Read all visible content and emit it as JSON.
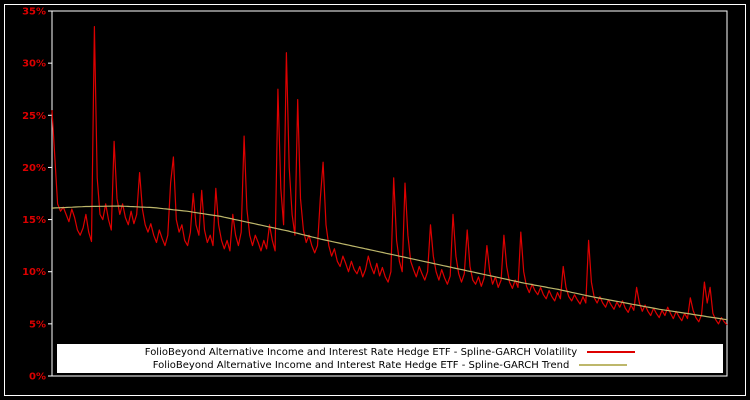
{
  "window": {
    "background": "#000000",
    "frame_color": "#ffffff"
  },
  "chart": {
    "plot_box_color": "#ffffff",
    "y_axis": {
      "label_color": "#dd0000",
      "tick_color": "#ffffff"
    },
    "legend": {
      "background": "#ffffff",
      "entries": [
        {
          "label": "FolioBeyond Alternative Income and Interest Rate Hedge ETF - Spline-GARCH Volatility",
          "color": "#dd0000"
        },
        {
          "label": "FolioBeyond Alternative Income and Interest Rate Hedge ETF - Spline-GARCH Trend",
          "color": "#bdb76b"
        }
      ]
    }
  },
  "chart_data": {
    "type": "line",
    "title": "",
    "xlabel": "",
    "ylabel": "",
    "ylim": [
      0,
      35
    ],
    "grid": false,
    "legend_position": "bottom",
    "y_ticks": [
      {
        "value": 0,
        "label": "0%"
      },
      {
        "value": 5,
        "label": "5%"
      },
      {
        "value": 10,
        "label": "10%"
      },
      {
        "value": 15,
        "label": "15%"
      },
      {
        "value": 20,
        "label": "20%"
      },
      {
        "value": 25,
        "label": "25%"
      },
      {
        "value": 30,
        "label": "30%"
      },
      {
        "value": 35,
        "label": "35%"
      }
    ],
    "series": [
      {
        "name": "FolioBeyond Alternative Income and Interest Rate Hedge ETF - Spline-GARCH Volatility",
        "color": "#dd0000",
        "unit": "%",
        "values": [
          25.5,
          21,
          16.5,
          15.8,
          16.2,
          15.5,
          14.8,
          16,
          15.2,
          14,
          13.5,
          14.2,
          15.5,
          13.8,
          12.9,
          33.5,
          19,
          15.5,
          15,
          16.5,
          15,
          14,
          22.5,
          17,
          15.5,
          16.5,
          15.2,
          14.5,
          15.8,
          14.6,
          15.5,
          19.5,
          16,
          14.5,
          13.8,
          14.6,
          13.5,
          12.8,
          14,
          13.2,
          12.5,
          13.5,
          18.5,
          21,
          15,
          13.8,
          14.5,
          13,
          12.5,
          13.8,
          17.5,
          14.5,
          13.5,
          17.8,
          14,
          12.8,
          13.5,
          12.5,
          18,
          14.5,
          13,
          12.2,
          13,
          12,
          15.5,
          13.5,
          12.5,
          13.8,
          23,
          16,
          13.5,
          12.5,
          13.5,
          12.8,
          12,
          13,
          12.2,
          14.5,
          13,
          12,
          27.5,
          18,
          14.5,
          31,
          20,
          15.5,
          13.5,
          26.5,
          17,
          14,
          12.8,
          13.5,
          12.5,
          11.8,
          12.5,
          17,
          20.5,
          14.5,
          12.5,
          11.5,
          12.2,
          11,
          10.5,
          11.5,
          10.8,
          10,
          11,
          10.2,
          9.8,
          10.5,
          9.5,
          10.2,
          11.5,
          10.5,
          9.8,
          10.8,
          9.6,
          10.4,
          9.5,
          9,
          10,
          19,
          13,
          11,
          10,
          18.5,
          13.5,
          11,
          10.2,
          9.5,
          10.5,
          9.8,
          9.2,
          10,
          14.5,
          11.5,
          10,
          9.2,
          10.2,
          9.4,
          8.8,
          9.6,
          15.5,
          11.5,
          9.8,
          9,
          9.8,
          14,
          10.5,
          9.2,
          8.8,
          9.5,
          8.6,
          9.4,
          12.5,
          10,
          8.8,
          9.5,
          8.5,
          9.2,
          13.5,
          10.5,
          9,
          8.4,
          9.2,
          8.5,
          13.8,
          10,
          8.6,
          8,
          8.8,
          8.2,
          7.8,
          8.5,
          7.8,
          7.4,
          8.2,
          7.6,
          7.2,
          8,
          7.4,
          10.5,
          8.5,
          7.6,
          7.2,
          7.8,
          7.3,
          6.9,
          7.6,
          7,
          13,
          9,
          7.5,
          7,
          7.6,
          7,
          6.6,
          7.3,
          6.8,
          6.4,
          7.1,
          6.6,
          7.2,
          6.5,
          6.1,
          6.8,
          6.3,
          8.5,
          7,
          6.2,
          6.8,
          6.2,
          5.8,
          6.5,
          6,
          5.6,
          6.3,
          5.8,
          6.6,
          6,
          5.5,
          6.2,
          5.7,
          5.3,
          6,
          5.5,
          7.5,
          6.3,
          5.6,
          5.2,
          5.9,
          9,
          7,
          8.5,
          6,
          5.4,
          5,
          5.6,
          5.2,
          4.9
        ]
      },
      {
        "name": "FolioBeyond Alternative Income and Interest Rate Hedge ETF - Spline-GARCH Trend",
        "color": "#bdb76b",
        "unit": "%",
        "control_points": [
          {
            "t": 0.0,
            "v": 16.1
          },
          {
            "t": 0.05,
            "v": 16.25
          },
          {
            "t": 0.1,
            "v": 16.3
          },
          {
            "t": 0.15,
            "v": 16.15
          },
          {
            "t": 0.2,
            "v": 15.8
          },
          {
            "t": 0.25,
            "v": 15.3
          },
          {
            "t": 0.3,
            "v": 14.6
          },
          {
            "t": 0.35,
            "v": 13.9
          },
          {
            "t": 0.4,
            "v": 13.1
          },
          {
            "t": 0.45,
            "v": 12.4
          },
          {
            "t": 0.5,
            "v": 11.7
          },
          {
            "t": 0.55,
            "v": 11.0
          },
          {
            "t": 0.6,
            "v": 10.3
          },
          {
            "t": 0.65,
            "v": 9.6
          },
          {
            "t": 0.7,
            "v": 8.9
          },
          {
            "t": 0.75,
            "v": 8.3
          },
          {
            "t": 0.8,
            "v": 7.6
          },
          {
            "t": 0.85,
            "v": 7.0
          },
          {
            "t": 0.9,
            "v": 6.4
          },
          {
            "t": 0.95,
            "v": 5.9
          },
          {
            "t": 1.0,
            "v": 5.4
          }
        ]
      }
    ]
  }
}
